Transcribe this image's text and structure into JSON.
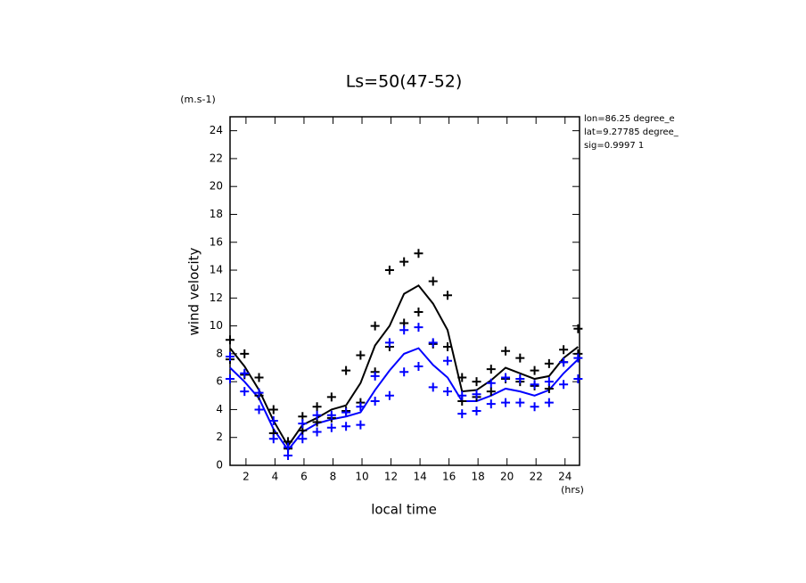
{
  "chart_data": {
    "type": "line",
    "title": "Ls=50(47-52)",
    "y_unit": "(m.s-1)",
    "x_unit": "(hrs)",
    "xlabel": "local time",
    "ylabel": "wind velocity",
    "annotations": [
      "lon=86.25 degree_e",
      "lat=9.27785 degree_",
      "sig=0.9997 1"
    ],
    "xlim": [
      0.9,
      25.0
    ],
    "ylim": [
      0,
      25
    ],
    "xticks": [
      2,
      4,
      6,
      8,
      10,
      12,
      14,
      16,
      18,
      20,
      22,
      24
    ],
    "yticks": [
      0,
      2,
      4,
      6,
      8,
      10,
      12,
      14,
      16,
      18,
      20,
      22,
      24
    ],
    "x": [
      0.9,
      1.9,
      2.9,
      3.9,
      4.9,
      5.9,
      6.9,
      7.9,
      8.9,
      9.9,
      10.9,
      11.9,
      12.9,
      13.9,
      14.9,
      15.9,
      16.9,
      17.9,
      18.9,
      19.9,
      20.9,
      21.9,
      22.9,
      23.9,
      24.9
    ],
    "series": [
      {
        "style": "line",
        "color": "#000000",
        "values": [
          8.4,
          7.1,
          5.4,
          3.2,
          1.4,
          2.9,
          3.4,
          4.0,
          4.3,
          5.9,
          8.6,
          10.0,
          12.3,
          12.9,
          11.6,
          9.7,
          5.3,
          5.4,
          6.1,
          7.0,
          6.6,
          6.2,
          6.4,
          7.7,
          8.5
        ]
      },
      {
        "style": "line",
        "color": "#0000ff",
        "values": [
          7.0,
          6.0,
          4.8,
          2.6,
          1.1,
          2.4,
          3.0,
          3.3,
          3.5,
          3.8,
          5.4,
          6.8,
          8.0,
          8.4,
          7.2,
          6.3,
          4.6,
          4.6,
          5.0,
          5.5,
          5.3,
          5.0,
          5.4,
          6.6,
          7.6
        ]
      },
      {
        "style": "markers",
        "color": "#000000",
        "x": [
          0.9,
          0.9,
          1.9,
          1.9,
          2.9,
          2.9,
          3.9,
          3.9,
          4.9,
          4.9,
          5.9,
          5.9,
          6.9,
          6.9,
          7.9,
          7.9,
          8.9,
          8.9,
          9.9,
          9.9,
          10.9,
          10.9,
          11.9,
          11.9,
          12.9,
          12.9,
          13.9,
          13.9,
          14.9,
          14.9,
          15.9,
          15.9,
          16.9,
          16.9,
          17.9,
          17.9,
          18.9,
          18.9,
          19.9,
          19.9,
          20.9,
          20.9,
          21.9,
          21.9,
          22.9,
          22.9,
          23.9,
          23.9,
          24.9,
          24.9
        ],
        "values": [
          7.6,
          9.0,
          6.5,
          8.0,
          5.0,
          6.3,
          2.3,
          4.0,
          1.2,
          1.7,
          2.5,
          3.5,
          3.1,
          4.2,
          3.4,
          4.9,
          3.9,
          6.8,
          4.5,
          7.9,
          6.7,
          10.0,
          8.5,
          14.0,
          10.2,
          14.6,
          11.0,
          15.2,
          8.7,
          13.2,
          8.5,
          12.2,
          4.6,
          6.3,
          4.9,
          6.0,
          5.3,
          6.9,
          6.2,
          8.2,
          6.0,
          7.7,
          5.7,
          6.8,
          5.5,
          7.3,
          7.4,
          8.3,
          8.0,
          9.8
        ]
      },
      {
        "style": "markers",
        "color": "#0000ff",
        "x": [
          0.9,
          0.9,
          1.9,
          1.9,
          2.9,
          2.9,
          3.9,
          3.9,
          4.9,
          4.9,
          5.9,
          5.9,
          6.9,
          6.9,
          7.9,
          7.9,
          8.9,
          8.9,
          9.9,
          9.9,
          10.9,
          10.9,
          11.9,
          11.9,
          12.9,
          12.9,
          13.9,
          13.9,
          14.9,
          14.9,
          15.9,
          15.9,
          16.9,
          16.9,
          17.9,
          17.9,
          18.9,
          18.9,
          19.9,
          19.9,
          20.9,
          20.9,
          21.9,
          21.9,
          22.9,
          22.9,
          23.9,
          23.9,
          24.9,
          24.9
        ],
        "values": [
          6.2,
          7.8,
          5.3,
          6.6,
          4.0,
          5.2,
          1.9,
          3.2,
          0.7,
          1.3,
          1.9,
          3.0,
          2.4,
          3.6,
          2.7,
          3.6,
          2.8,
          3.8,
          2.9,
          4.2,
          4.6,
          6.4,
          5.0,
          8.8,
          6.7,
          9.7,
          7.1,
          9.9,
          5.6,
          8.8,
          5.3,
          7.5,
          3.7,
          5.0,
          3.9,
          5.1,
          4.4,
          5.9,
          4.5,
          6.3,
          4.5,
          6.2,
          4.2,
          5.8,
          4.5,
          6.0,
          5.8,
          7.4,
          6.2,
          7.7
        ]
      }
    ]
  }
}
